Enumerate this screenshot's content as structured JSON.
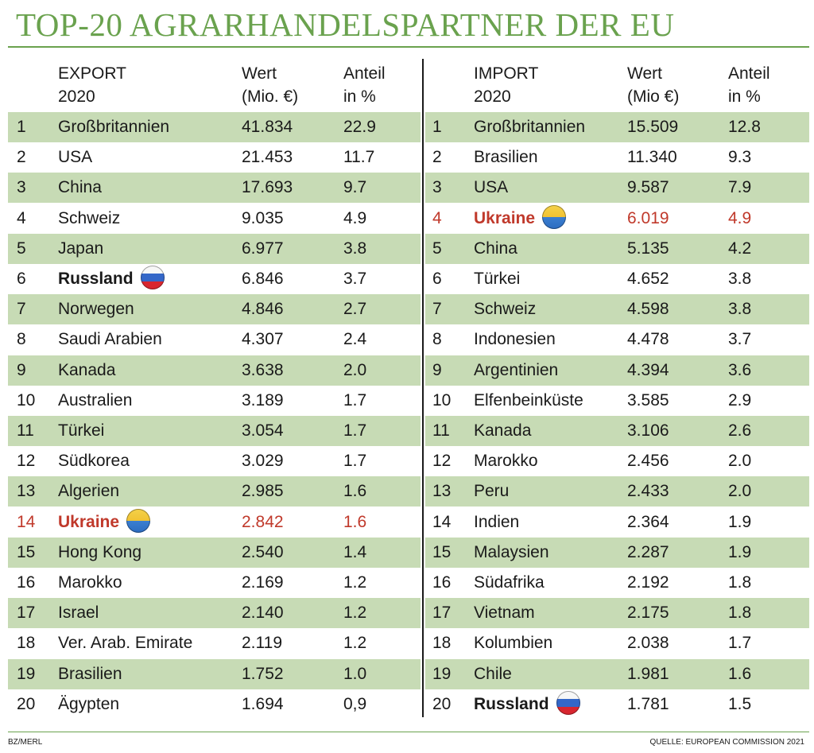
{
  "title": "TOP-20 AGRARHANDELSPARTNER DER EU",
  "export": {
    "headers": {
      "partner_line1": "EXPORT",
      "partner_line2": "2020",
      "value_line1": "Wert",
      "value_line2": "(Mio. €)",
      "share_line1": "Anteil",
      "share_line2": "in %"
    },
    "rows": [
      {
        "rank": "1",
        "country": "Großbritannien",
        "value": "41.834",
        "share": "22.9"
      },
      {
        "rank": "2",
        "country": "USA",
        "value": "21.453",
        "share": "11.7"
      },
      {
        "rank": "3",
        "country": "China",
        "value": "17.693",
        "share": "9.7"
      },
      {
        "rank": "4",
        "country": "Schweiz",
        "value": "9.035",
        "share": "4.9"
      },
      {
        "rank": "5",
        "country": "Japan",
        "value": "6.977",
        "share": "3.8"
      },
      {
        "rank": "6",
        "country": "Russland",
        "value": "6.846",
        "share": "3.7",
        "bold": true,
        "flag": "russia-flag-icon"
      },
      {
        "rank": "7",
        "country": "Norwegen",
        "value": "4.846",
        "share": "2.7"
      },
      {
        "rank": "8",
        "country": "Saudi Arabien",
        "value": "4.307",
        "share": "2.4"
      },
      {
        "rank": "9",
        "country": "Kanada",
        "value": "3.638",
        "share": "2.0"
      },
      {
        "rank": "10",
        "country": "Australien",
        "value": "3.189",
        "share": "1.7"
      },
      {
        "rank": "11",
        "country": "Türkei",
        "value": "3.054",
        "share": "1.7"
      },
      {
        "rank": "12",
        "country": "Südkorea",
        "value": "3.029",
        "share": "1.7"
      },
      {
        "rank": "13",
        "country": "Algerien",
        "value": "2.985",
        "share": "1.6"
      },
      {
        "rank": "14",
        "country": "Ukraine",
        "value": "2.842",
        "share": "1.6",
        "bold": true,
        "highlight": true,
        "flag": "ukraine-flag-icon"
      },
      {
        "rank": "15",
        "country": "Hong Kong",
        "value": "2.540",
        "share": "1.4"
      },
      {
        "rank": "16",
        "country": "Marokko",
        "value": "2.169",
        "share": "1.2"
      },
      {
        "rank": "17",
        "country": "Israel",
        "value": "2.140",
        "share": "1.2"
      },
      {
        "rank": "18",
        "country": "Ver. Arab. Emirate",
        "value": "2.119",
        "share": "1.2"
      },
      {
        "rank": "19",
        "country": "Brasilien",
        "value": "1.752",
        "share": "1.0"
      },
      {
        "rank": "20",
        "country": "Ägypten",
        "value": "1.694",
        "share": "0,9"
      }
    ]
  },
  "import": {
    "headers": {
      "partner_line1": "IMPORT",
      "partner_line2": "2020",
      "value_line1": "Wert",
      "value_line2": "(Mio €)",
      "share_line1": "Anteil",
      "share_line2": "in %"
    },
    "rows": [
      {
        "rank": "1",
        "country": "Großbritannien",
        "value": "15.509",
        "share": "12.8"
      },
      {
        "rank": "2",
        "country": "Brasilien",
        "value": "11.340",
        "share": "9.3"
      },
      {
        "rank": "3",
        "country": "USA",
        "value": "9.587",
        "share": "7.9"
      },
      {
        "rank": "4",
        "country": "Ukraine",
        "value": "6.019",
        "share": "4.9",
        "bold": true,
        "highlight": true,
        "flag": "ukraine-flag-icon"
      },
      {
        "rank": "5",
        "country": "China",
        "value": "5.135",
        "share": "4.2"
      },
      {
        "rank": "6",
        "country": "Türkei",
        "value": "4.652",
        "share": "3.8"
      },
      {
        "rank": "7",
        "country": "Schweiz",
        "value": "4.598",
        "share": "3.8"
      },
      {
        "rank": "8",
        "country": "Indonesien",
        "value": "4.478",
        "share": "3.7"
      },
      {
        "rank": "9",
        "country": "Argentinien",
        "value": "4.394",
        "share": "3.6"
      },
      {
        "rank": "10",
        "country": "Elfenbeinküste",
        "value": "3.585",
        "share": "2.9"
      },
      {
        "rank": "11",
        "country": "Kanada",
        "value": "3.106",
        "share": "2.6"
      },
      {
        "rank": "12",
        "country": "Marokko",
        "value": "2.456",
        "share": "2.0"
      },
      {
        "rank": "13",
        "country": "Peru",
        "value": "2.433",
        "share": "2.0"
      },
      {
        "rank": "14",
        "country": "Indien",
        "value": "2.364",
        "share": "1.9"
      },
      {
        "rank": "15",
        "country": "Malaysien",
        "value": "2.287",
        "share": "1.9"
      },
      {
        "rank": "16",
        "country": "Südafrika",
        "value": "2.192",
        "share": "1.8"
      },
      {
        "rank": "17",
        "country": "Vietnam",
        "value": "2.175",
        "share": "1.8"
      },
      {
        "rank": "18",
        "country": "Kolumbien",
        "value": "2.038",
        "share": "1.7"
      },
      {
        "rank": "19",
        "country": "Chile",
        "value": "1.981",
        "share": "1.6"
      },
      {
        "rank": "20",
        "country": "Russland",
        "value": "1.781",
        "share": "1.5",
        "bold": true,
        "flag": "russia-flag-icon"
      }
    ]
  },
  "footer": {
    "credit": "BZ/MERL",
    "source": "QUELLE: EUROPEAN COMMISSION 2021"
  },
  "colors": {
    "title_green": "#6aa24e",
    "row_shade": "#c7dbb5",
    "highlight_red": "#c0392b"
  }
}
